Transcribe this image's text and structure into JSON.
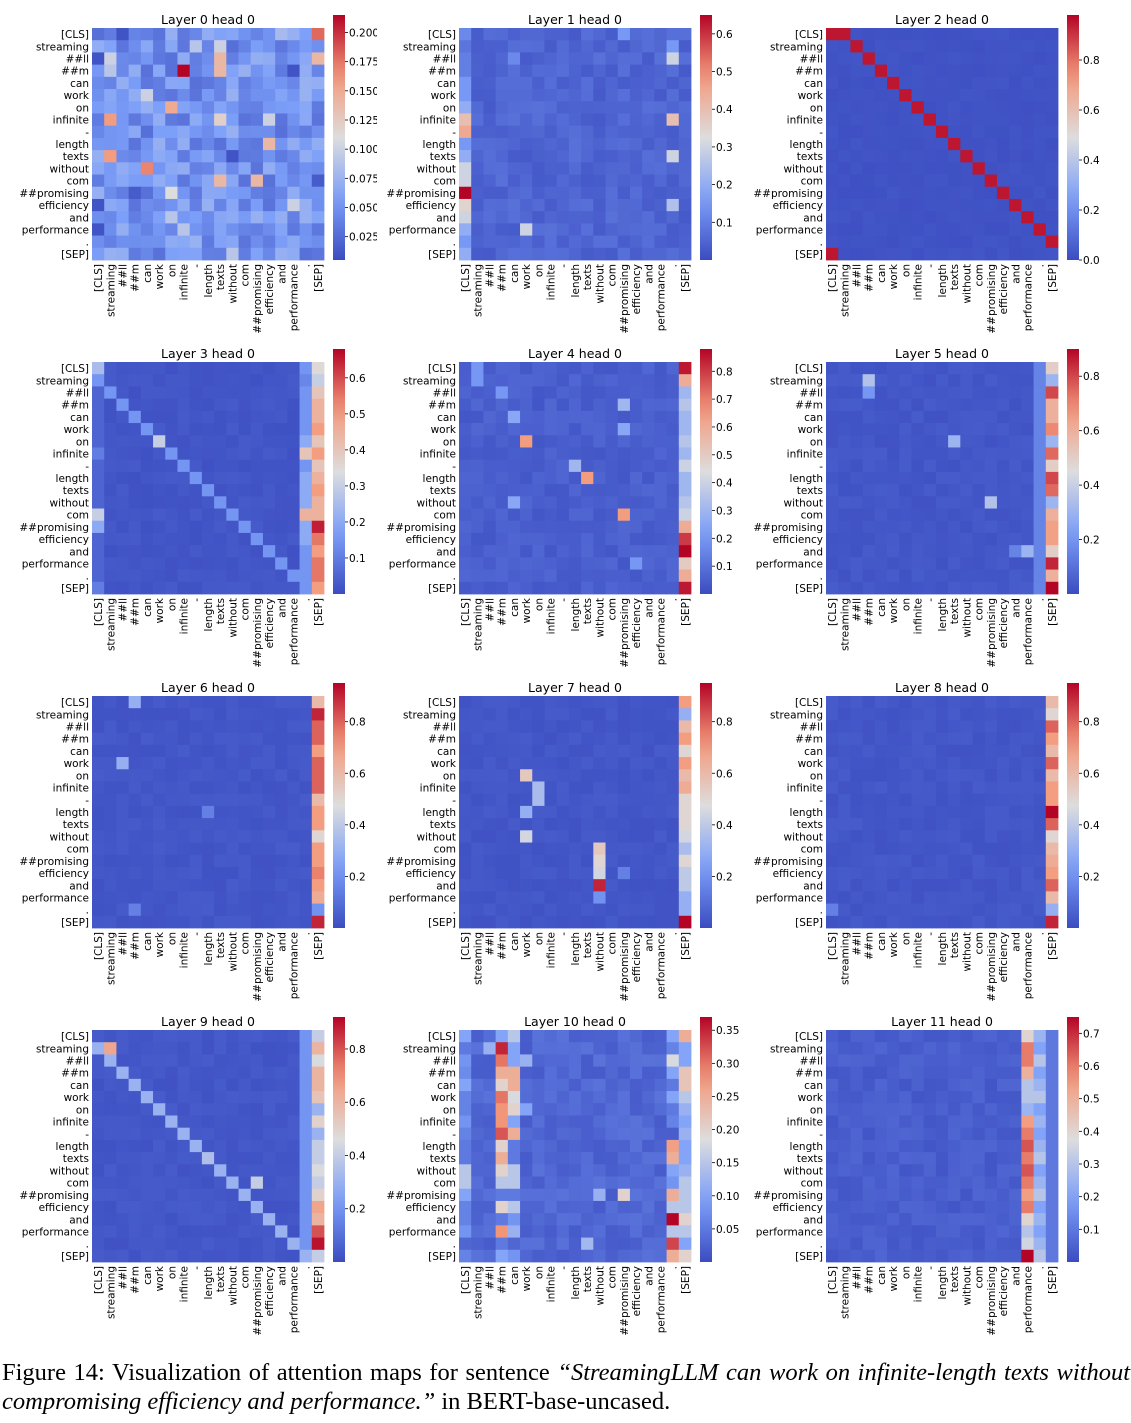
{
  "tokens": [
    "[CLS]",
    "streaming",
    "##ll",
    "##m",
    "can",
    "work",
    "on",
    "infinite",
    "-",
    "length",
    "texts",
    "without",
    "com",
    "##promising",
    "efficiency",
    "and",
    "performance",
    ".",
    "[SEP]"
  ],
  "chart_data": [
    {
      "type": "heatmap",
      "title": "Layer 0 head 0",
      "vmin": 0.005,
      "vmax": 0.215,
      "ticks": [
        0.025,
        0.05,
        0.075,
        0.1,
        0.125,
        0.15,
        0.175,
        0.2
      ],
      "base": 0.05,
      "columns": [],
      "diag": null,
      "cells": [
        [
          0,
          18,
          0.18
        ],
        [
          2,
          10,
          0.14
        ],
        [
          3,
          7,
          0.215
        ],
        [
          3,
          10,
          0.14
        ],
        [
          2,
          18,
          0.14
        ],
        [
          6,
          6,
          0.15
        ],
        [
          7,
          1,
          0.16
        ],
        [
          7,
          10,
          0.12
        ],
        [
          9,
          14,
          0.14
        ],
        [
          10,
          1,
          0.16
        ],
        [
          11,
          4,
          0.17
        ],
        [
          12,
          10,
          0.14
        ],
        [
          12,
          13,
          0.14
        ],
        [
          13,
          6,
          0.11
        ],
        [
          5,
          4,
          0.1
        ],
        [
          1,
          10,
          0.1
        ],
        [
          1,
          8,
          0.09
        ],
        [
          7,
          14,
          0.1
        ],
        [
          14,
          16,
          0.1
        ],
        [
          2,
          1,
          0.1
        ],
        [
          3,
          1,
          0.09
        ],
        [
          15,
          6,
          0.09
        ],
        [
          16,
          7,
          0.09
        ],
        [
          18,
          11,
          0.09
        ],
        [
          2,
          0,
          0.01
        ],
        [
          3,
          16,
          0.01
        ],
        [
          14,
          0,
          0.01
        ],
        [
          16,
          0,
          0.01
        ],
        [
          10,
          11,
          0.01
        ],
        [
          0,
          2,
          0.01
        ],
        [
          4,
          18,
          0.07
        ],
        [
          12,
          18,
          0.015
        ],
        [
          13,
          3,
          0.015
        ],
        [
          0,
          15,
          0.08
        ]
      ]
    },
    {
      "type": "heatmap",
      "title": "Layer 1 head 0",
      "vmin": 0.0,
      "vmax": 0.65,
      "ticks": [
        0.1,
        0.2,
        0.3,
        0.4,
        0.5,
        0.6
      ],
      "base": 0.05,
      "columns": [
        [
          0,
          [
            0.12,
            0.08,
            0.1,
            0.1,
            0.15,
            0.15,
            0.2,
            0.4,
            0.45,
            0.15,
            0.2,
            0.3,
            0.3,
            0.65,
            0.35,
            0.3,
            0.2,
            0.15,
            0.2
          ]
        ]
      ],
      "diag": null,
      "cells": [
        [
          2,
          17,
          0.3
        ],
        [
          7,
          17,
          0.4
        ],
        [
          10,
          17,
          0.3
        ],
        [
          16,
          5,
          0.3
        ],
        [
          0,
          13,
          0.15
        ],
        [
          1,
          17,
          0.15
        ],
        [
          14,
          17,
          0.25
        ],
        [
          2,
          4,
          0.12
        ]
      ]
    },
    {
      "type": "heatmap",
      "title": "Layer 2 head 0",
      "vmin": 0.0,
      "vmax": 0.98,
      "ticks": [
        0.0,
        0.2,
        0.4,
        0.6,
        0.8
      ],
      "base": 0.02,
      "columns": [],
      "diag": {
        "offset": 1,
        "value": 0.95
      },
      "cells": [
        [
          0,
          0,
          0.95
        ],
        [
          18,
          0,
          0.95
        ]
      ]
    },
    {
      "type": "heatmap",
      "title": "Layer 3 head 0",
      "vmin": 0.0,
      "vmax": 0.68,
      "ticks": [
        0.1,
        0.2,
        0.3,
        0.4,
        0.5,
        0.6
      ],
      "base": 0.02,
      "columns": [
        [
          18,
          [
            0.35,
            0.3,
            0.4,
            0.45,
            0.45,
            0.5,
            0.4,
            0.5,
            0.4,
            0.45,
            0.5,
            0.45,
            0.45,
            0.65,
            0.55,
            0.5,
            0.55,
            0.55,
            0.5
          ]
        ],
        [
          17,
          [
            0.15,
            0.12,
            0.15,
            0.15,
            0.15,
            0.15,
            0.2,
            0.4,
            0.15,
            0.2,
            0.2,
            0.2,
            0.45,
            0.2,
            0.2,
            0.15,
            0.15,
            0.15,
            0.15
          ]
        ],
        [
          0,
          [
            0.25,
            0.05,
            0.05,
            0.05,
            0.05,
            0.05,
            0.05,
            0.1,
            0.05,
            0.05,
            0.05,
            0.05,
            0.3,
            0.2,
            0.05,
            0.05,
            0.05,
            0.05,
            0.1
          ]
        ]
      ],
      "diag": {
        "offset": -1,
        "value": 0.15
      },
      "cells": [
        [
          6,
          5,
          0.3
        ]
      ]
    },
    {
      "type": "heatmap",
      "title": "Layer 4 head 0",
      "vmin": 0.0,
      "vmax": 0.88,
      "ticks": [
        0.1,
        0.2,
        0.3,
        0.4,
        0.5,
        0.6,
        0.7,
        0.8
      ],
      "base": 0.05,
      "columns": [
        [
          18,
          [
            0.85,
            0.6,
            0.3,
            0.35,
            0.3,
            0.3,
            0.35,
            0.3,
            0.4,
            0.3,
            0.3,
            0.35,
            0.4,
            0.6,
            0.8,
            0.88,
            0.5,
            0.6,
            0.85
          ]
        ]
      ],
      "diag": null,
      "cells": [
        [
          6,
          5,
          0.65
        ],
        [
          9,
          10,
          0.65
        ],
        [
          12,
          13,
          0.65
        ],
        [
          8,
          9,
          0.3
        ],
        [
          4,
          4,
          0.25
        ],
        [
          0,
          1,
          0.2
        ],
        [
          1,
          1,
          0.2
        ],
        [
          3,
          13,
          0.3
        ],
        [
          11,
          4,
          0.25
        ],
        [
          2,
          3,
          0.2
        ],
        [
          5,
          13,
          0.25
        ],
        [
          16,
          14,
          0.2
        ]
      ]
    },
    {
      "type": "heatmap",
      "title": "Layer 5 head 0",
      "vmin": 0.0,
      "vmax": 0.9,
      "ticks": [
        0.2,
        0.4,
        0.6,
        0.8
      ],
      "base": 0.03,
      "columns": [
        [
          18,
          [
            0.5,
            0.3,
            0.8,
            0.6,
            0.6,
            0.7,
            0.3,
            0.75,
            0.5,
            0.8,
            0.75,
            0.3,
            0.6,
            0.65,
            0.65,
            0.5,
            0.85,
            0.6,
            0.9
          ]
        ],
        [
          17,
          [
            0.15,
            0.15,
            0.15,
            0.15,
            0.15,
            0.15,
            0.15,
            0.15,
            0.15,
            0.15,
            0.15,
            0.15,
            0.15,
            0.15,
            0.15,
            0.15,
            0.15,
            0.15,
            0.15
          ]
        ]
      ],
      "diag": null,
      "cells": [
        [
          1,
          3,
          0.35
        ],
        [
          6,
          10,
          0.3
        ],
        [
          11,
          13,
          0.35
        ],
        [
          15,
          16,
          0.3
        ],
        [
          2,
          3,
          0.2
        ],
        [
          15,
          15,
          0.15
        ]
      ]
    },
    {
      "type": "heatmap",
      "title": "Layer 6 head 0",
      "vmin": 0.0,
      "vmax": 0.95,
      "ticks": [
        0.2,
        0.4,
        0.6,
        0.8
      ],
      "base": 0.03,
      "columns": [
        [
          18,
          [
            0.6,
            0.9,
            0.8,
            0.8,
            0.7,
            0.8,
            0.8,
            0.8,
            0.6,
            0.7,
            0.7,
            0.5,
            0.7,
            0.7,
            0.75,
            0.7,
            0.65,
            0.2,
            0.9
          ]
        ]
      ],
      "diag": null,
      "cells": [
        [
          0,
          3,
          0.3
        ],
        [
          5,
          2,
          0.3
        ],
        [
          9,
          9,
          0.15
        ],
        [
          17,
          3,
          0.15
        ]
      ]
    },
    {
      "type": "heatmap",
      "title": "Layer 7 head 0",
      "vmin": 0.0,
      "vmax": 0.95,
      "ticks": [
        0.2,
        0.4,
        0.6,
        0.8
      ],
      "base": 0.03,
      "columns": [
        [
          18,
          [
            0.7,
            0.3,
            0.6,
            0.7,
            0.5,
            0.7,
            0.6,
            0.65,
            0.5,
            0.5,
            0.5,
            0.45,
            0.35,
            0.5,
            0.4,
            0.4,
            0.3,
            0.3,
            0.95
          ]
        ]
      ],
      "diag": null,
      "cells": [
        [
          6,
          5,
          0.55
        ],
        [
          7,
          6,
          0.35
        ],
        [
          8,
          6,
          0.35
        ],
        [
          9,
          5,
          0.3
        ],
        [
          11,
          5,
          0.45
        ],
        [
          12,
          11,
          0.55
        ],
        [
          13,
          11,
          0.5
        ],
        [
          14,
          11,
          0.45
        ],
        [
          15,
          11,
          0.9
        ],
        [
          16,
          11,
          0.2
        ],
        [
          14,
          13,
          0.15
        ]
      ]
    },
    {
      "type": "heatmap",
      "title": "Layer 8 head 0",
      "vmin": 0.0,
      "vmax": 0.95,
      "ticks": [
        0.2,
        0.4,
        0.6,
        0.8
      ],
      "base": 0.03,
      "columns": [
        [
          18,
          [
            0.6,
            0.5,
            0.8,
            0.7,
            0.6,
            0.8,
            0.6,
            0.7,
            0.7,
            0.95,
            0.8,
            0.5,
            0.6,
            0.65,
            0.7,
            0.8,
            0.6,
            0.3,
            0.9
          ]
        ]
      ],
      "diag": null,
      "cells": [
        [
          17,
          0,
          0.15
        ]
      ]
    },
    {
      "type": "heatmap",
      "title": "Layer 9 head 0",
      "vmin": 0.0,
      "vmax": 0.92,
      "ticks": [
        0.2,
        0.4,
        0.6,
        0.8
      ],
      "base": 0.03,
      "columns": [
        [
          18,
          [
            0.4,
            0.6,
            0.45,
            0.6,
            0.6,
            0.55,
            0.3,
            0.5,
            0.3,
            0.4,
            0.4,
            0.45,
            0.4,
            0.5,
            0.65,
            0.6,
            0.8,
            0.9,
            0.4
          ]
        ],
        [
          17,
          [
            0.2,
            0.2,
            0.2,
            0.2,
            0.2,
            0.2,
            0.2,
            0.2,
            0.2,
            0.2,
            0.2,
            0.2,
            0.2,
            0.2,
            0.2,
            0.2,
            0.2,
            0.2,
            0.2
          ]
        ]
      ],
      "diag": {
        "offset": -1,
        "value": 0.3
      },
      "cells": [
        [
          1,
          1,
          0.65
        ],
        [
          10,
          9,
          0.35
        ],
        [
          12,
          13,
          0.4
        ]
      ]
    },
    {
      "type": "heatmap",
      "title": "Layer 10 head 0",
      "vmin": 0.0,
      "vmax": 0.37,
      "ticks": [
        0.05,
        0.1,
        0.15,
        0.2,
        0.25,
        0.3,
        0.35
      ],
      "base": 0.03,
      "columns": [
        [
          3,
          [
            0.1,
            0.35,
            0.3,
            0.25,
            0.2,
            0.3,
            0.28,
            0.28,
            0.32,
            0.2,
            0.25,
            0.2,
            0.15,
            0.05,
            0.2,
            0.05,
            0.28,
            0.05,
            0.1
          ]
        ],
        [
          4,
          [
            0.15,
            0.1,
            0.1,
            0.25,
            0.25,
            0.18,
            0.2,
            0.1,
            0.25,
            0.05,
            0.05,
            0.15,
            0.15,
            0.05,
            0.15,
            0.08,
            0.12,
            0.03,
            0.08
          ]
        ],
        [
          17,
          [
            0.1,
            0.06,
            0.18,
            0.1,
            0.05,
            0.1,
            0.05,
            0.06,
            0.02,
            0.27,
            0.25,
            0.1,
            0.08,
            0.25,
            0.15,
            0.37,
            0.15,
            0.33,
            0.25
          ]
        ],
        [
          18,
          [
            0.25,
            0.1,
            0.1,
            0.22,
            0.22,
            0.15,
            0.12,
            0.1,
            0.12,
            0.1,
            0.1,
            0.12,
            0.15,
            0.15,
            0.15,
            0.2,
            0.15,
            0.1,
            0.2
          ]
        ],
        [
          0,
          [
            0.1,
            0.05,
            0.08,
            0.07,
            0.1,
            0.06,
            0.06,
            0.08,
            0.06,
            0.05,
            0.05,
            0.15,
            0.15,
            0.1,
            0.06,
            0.06,
            0.08,
            0.03,
            0.06
          ]
        ]
      ],
      "diag": null,
      "cells": [
        [
          1,
          2,
          0.12
        ],
        [
          13,
          11,
          0.12
        ],
        [
          13,
          13,
          0.2
        ],
        [
          17,
          10,
          0.13
        ],
        [
          2,
          5,
          0.12
        ],
        [
          6,
          5,
          0.1
        ]
      ]
    },
    {
      "type": "heatmap",
      "title": "Layer 11 head 0",
      "vmin": 0.0,
      "vmax": 0.75,
      "ticks": [
        0.1,
        0.2,
        0.3,
        0.4,
        0.5,
        0.6,
        0.7
      ],
      "base": 0.04,
      "columns": [
        [
          16,
          [
            0.4,
            0.6,
            0.6,
            0.5,
            0.3,
            0.3,
            0.25,
            0.55,
            0.6,
            0.65,
            0.6,
            0.65,
            0.6,
            0.55,
            0.6,
            0.4,
            0.3,
            0.35,
            0.75
          ]
        ],
        [
          17,
          [
            0.25,
            0.2,
            0.3,
            0.2,
            0.25,
            0.3,
            0.2,
            0.25,
            0.2,
            0.25,
            0.3,
            0.2,
            0.25,
            0.3,
            0.2,
            0.25,
            0.2,
            0.25,
            0.3
          ]
        ],
        [
          18,
          [
            0.1,
            0.1,
            0.1,
            0.1,
            0.1,
            0.1,
            0.1,
            0.1,
            0.1,
            0.1,
            0.1,
            0.1,
            0.1,
            0.1,
            0.1,
            0.1,
            0.1,
            0.1,
            0.1
          ]
        ]
      ],
      "diag": null,
      "cells": []
    }
  ],
  "caption": {
    "label": "Figure 14:",
    "text_before": " Visualization of attention maps for sentence ",
    "quote": "“StreamingLLM can work on infinite-length texts without compromising efficiency and performance.”",
    "text_after": " in BERT-base-uncased."
  }
}
